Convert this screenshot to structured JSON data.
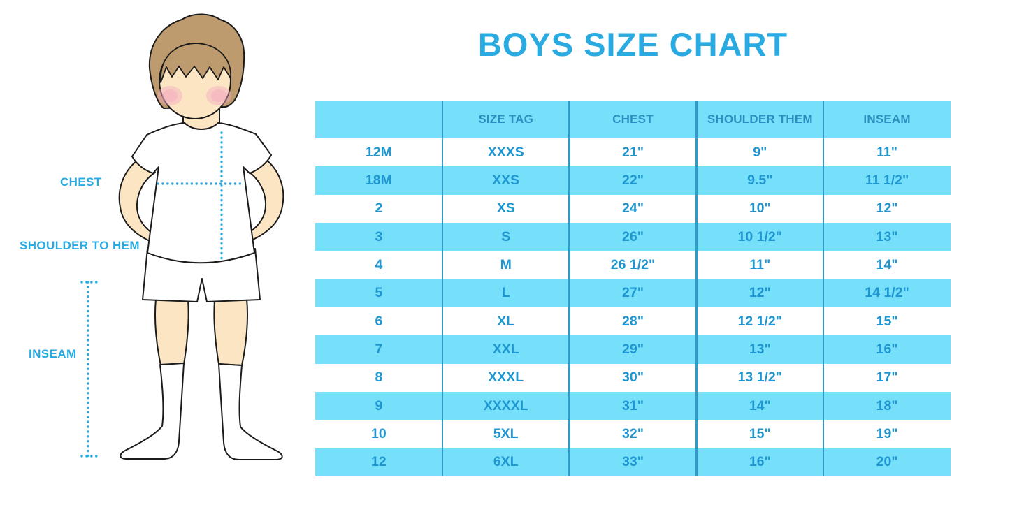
{
  "page": {
    "title": "BOYS SIZE CHART"
  },
  "diagram": {
    "labels": {
      "chest": "CHEST",
      "shoulder_to_hem": "SHOULDER TO HEM",
      "inseam": "INSEAM"
    },
    "dotted_line_color": "#29ABE2"
  },
  "colors": {
    "accent_blue": "#29ABE2",
    "band_blue": "#76E0FA",
    "divider_blue": "#2E9BC8",
    "header_text": "#2C8EC0",
    "body_text": "#1E96D2",
    "hair": "#BD9B6E",
    "skin": "#FBE5C3",
    "blush": "#F2A9C0"
  },
  "chart_data": {
    "type": "table",
    "title": "BOYS SIZE CHART",
    "columns": [
      "",
      "SIZE TAG",
      "CHEST",
      "SHOULDER THEM",
      "INSEAM"
    ],
    "rows": [
      [
        "12M",
        "XXXS",
        "21\"",
        "9\"",
        "11\""
      ],
      [
        "18M",
        "XXS",
        "22\"",
        "9.5\"",
        "11 1/2\""
      ],
      [
        "2",
        "XS",
        "24\"",
        "10\"",
        "12\""
      ],
      [
        "3",
        "S",
        "26\"",
        "10 1/2\"",
        "13\""
      ],
      [
        "4",
        "M",
        "26 1/2\"",
        "11\"",
        "14\""
      ],
      [
        "5",
        "L",
        "27\"",
        "12\"",
        "14 1/2\""
      ],
      [
        "6",
        "XL",
        "28\"",
        "12 1/2\"",
        "15\""
      ],
      [
        "7",
        "XXL",
        "29\"",
        "13\"",
        "16\""
      ],
      [
        "8",
        "XXXL",
        "30\"",
        "13 1/2\"",
        "17\""
      ],
      [
        "9",
        "XXXXL",
        "31\"",
        "14\"",
        "18\""
      ],
      [
        "10",
        "5XL",
        "32\"",
        "15\"",
        "19\""
      ],
      [
        "12",
        "6XL",
        "33\"",
        "16\"",
        "20\""
      ]
    ],
    "banded_rows": "alternating, starting with second data row",
    "legend_position": "none",
    "annotations": [
      "CHEST",
      "SHOULDER TO HEM",
      "INSEAM"
    ]
  }
}
